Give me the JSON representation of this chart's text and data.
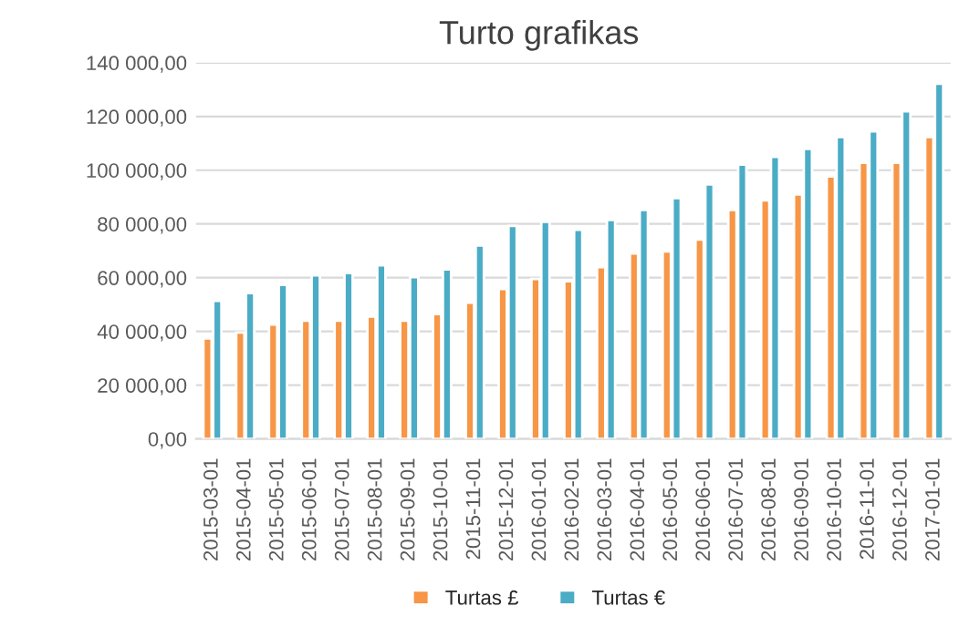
{
  "chart_data": {
    "type": "bar",
    "title": "Turto grafikas",
    "categories": [
      "2015-03-01",
      "2015-04-01",
      "2015-05-01",
      "2015-06-01",
      "2015-07-01",
      "2015-08-01",
      "2015-09-01",
      "2015-10-01",
      "2015-11-01",
      "2015-12-01",
      "2016-01-01",
      "2016-02-01",
      "2016-03-01",
      "2016-04-01",
      "2016-05-01",
      "2016-06-01",
      "2016-07-01",
      "2016-08-01",
      "2016-09-01",
      "2016-10-01",
      "2016-11-01",
      "2016-12-01",
      "2017-01-01"
    ],
    "series": [
      {
        "name": "Turtas £",
        "color": "#f79646",
        "values": [
          37400,
          39600,
          42600,
          44000,
          44000,
          45500,
          44000,
          46500,
          50700,
          55800,
          59500,
          58700,
          63900,
          69000,
          69800,
          74200,
          85200,
          88800,
          91000,
          97700,
          102800,
          102800,
          112300
        ]
      },
      {
        "name": "Turtas €",
        "color": "#4bacc6",
        "values": [
          51400,
          54300,
          57300,
          60900,
          61700,
          64600,
          60200,
          63100,
          72000,
          79300,
          80800,
          77800,
          81500,
          85200,
          89600,
          94700,
          102100,
          105000,
          107900,
          112300,
          114500,
          121900,
          132200
        ]
      }
    ],
    "ylim": [
      0,
      140000
    ],
    "yticks": [
      {
        "value": 0,
        "label": "0,00"
      },
      {
        "value": 20000,
        "label": "20 000,00"
      },
      {
        "value": 40000,
        "label": "40 000,00"
      },
      {
        "value": 60000,
        "label": "60 000,00"
      },
      {
        "value": 80000,
        "label": "80 000,00"
      },
      {
        "value": 100000,
        "label": "100 000,00"
      },
      {
        "value": 120000,
        "label": "120 000,00"
      },
      {
        "value": 140000,
        "label": "140 000,00"
      }
    ],
    "grid": "y",
    "legend": "bottom"
  }
}
